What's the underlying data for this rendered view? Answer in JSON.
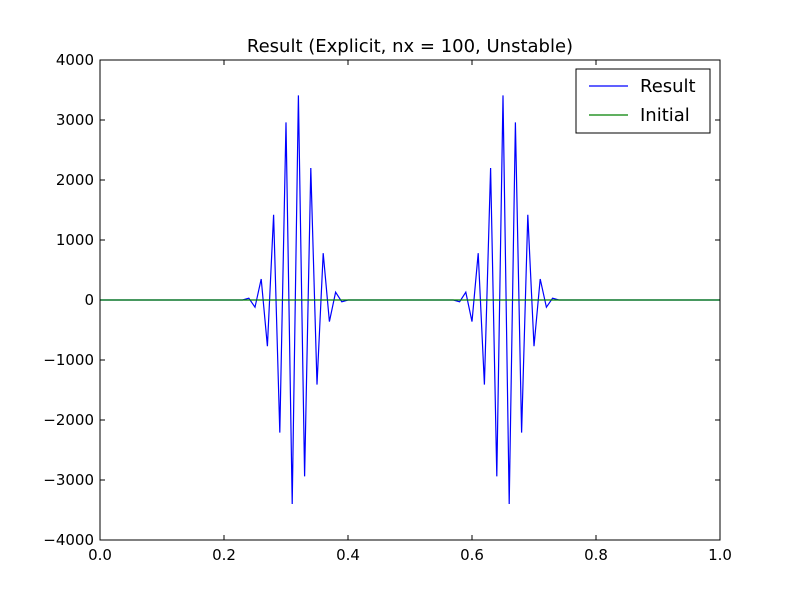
{
  "chart_data": {
    "type": "line",
    "title": "Result (Explicit, nx = 100, Unstable)",
    "xlabel": "",
    "ylabel": "",
    "xlim": [
      0.0,
      1.0
    ],
    "ylim": [
      -4000,
      4000
    ],
    "x_ticks": [
      0.0,
      0.2,
      0.4,
      0.6,
      0.8,
      1.0
    ],
    "x_tick_labels": [
      "0.0",
      "0.2",
      "0.4",
      "0.6",
      "0.8",
      "1.0"
    ],
    "y_ticks": [
      -4000,
      -3000,
      -2000,
      -1000,
      0,
      1000,
      2000,
      3000,
      4000
    ],
    "y_tick_labels": [
      "−4000",
      "−3000",
      "−2000",
      "−1000",
      "0",
      "1000",
      "2000",
      "3000",
      "4000"
    ],
    "grid": false,
    "legend_position": "upper right",
    "series": [
      {
        "name": "Result",
        "color": "#0000ff",
        "x": [
          0.0,
          0.23,
          0.24,
          0.25,
          0.26,
          0.27,
          0.28,
          0.29,
          0.3,
          0.31,
          0.32,
          0.33,
          0.34,
          0.35,
          0.36,
          0.37,
          0.38,
          0.39,
          0.4,
          0.57,
          0.58,
          0.59,
          0.6,
          0.61,
          0.62,
          0.63,
          0.64,
          0.65,
          0.66,
          0.67,
          0.68,
          0.69,
          0.7,
          0.71,
          0.72,
          0.73,
          0.74,
          1.0
        ],
        "y": [
          0,
          0,
          30,
          -120,
          350,
          -770,
          1420,
          -2210,
          2960,
          -3400,
          3410,
          -2940,
          2200,
          -1410,
          780,
          -360,
          130,
          -30,
          0,
          0,
          -30,
          130,
          -360,
          780,
          -1410,
          2200,
          -2940,
          3410,
          -3400,
          2960,
          -2210,
          1420,
          -770,
          350,
          -120,
          30,
          0,
          0
        ]
      },
      {
        "name": "Initial",
        "color": "#008000",
        "x": [
          0.0,
          1.0
        ],
        "y": [
          0,
          0
        ]
      }
    ]
  }
}
